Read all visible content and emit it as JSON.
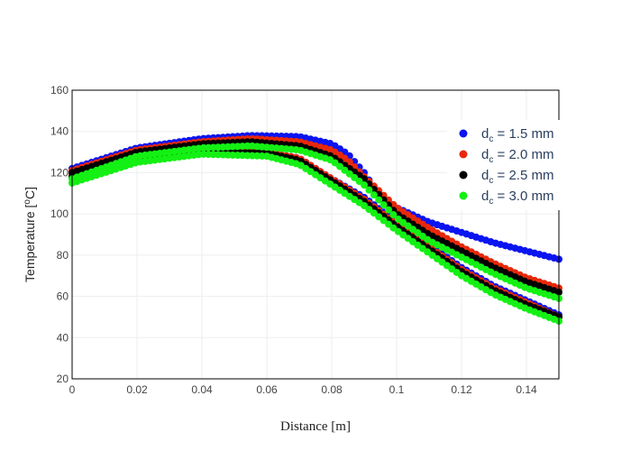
{
  "chart_data": {
    "type": "scatter",
    "title": "",
    "xlabel": "Distance [m]",
    "ylabel_text": "Temperature [",
    "ylabel_unit": "o",
    "ylabel_end": "C]",
    "xlim": [
      0,
      0.15
    ],
    "ylim": [
      20,
      160
    ],
    "x_ticks": [
      0,
      0.02,
      0.04,
      0.06,
      0.08,
      0.1,
      0.12,
      0.14
    ],
    "x_tick_labels": [
      "0",
      "0.02",
      "0.04",
      "0.06",
      "0.08",
      "0.1",
      "0.12",
      "0.14"
    ],
    "y_ticks": [
      20,
      40,
      60,
      80,
      100,
      120,
      140,
      160
    ],
    "y_tick_labels": [
      "20",
      "40",
      "60",
      "80",
      "100",
      "120",
      "140",
      "160"
    ],
    "grid": true,
    "legend_position": "right",
    "series": [
      {
        "name_main": "d",
        "name_sub": "c",
        "name_rest": " = 1.5 mm",
        "color": "#0a14f0",
        "curves": [
          [
            [
              0,
              122
            ],
            [
              0.02,
              132
            ],
            [
              0.04,
              136.5
            ],
            [
              0.055,
              138
            ],
            [
              0.07,
              137.5
            ],
            [
              0.08,
              134
            ],
            [
              0.085,
              129
            ],
            [
              0.09,
              120
            ],
            [
              0.095,
              108
            ],
            [
              0.1,
              103
            ],
            [
              0.11,
              96
            ],
            [
              0.12,
              91
            ],
            [
              0.13,
              86
            ],
            [
              0.14,
              82
            ],
            [
              0.15,
              78
            ]
          ],
          [
            [
              0,
              118
            ],
            [
              0.02,
              127
            ],
            [
              0.04,
              131
            ],
            [
              0.06,
              130
            ],
            [
              0.07,
              127
            ],
            [
              0.08,
              117
            ],
            [
              0.09,
              108
            ],
            [
              0.1,
              96
            ],
            [
              0.11,
              85
            ],
            [
              0.12,
              74
            ],
            [
              0.13,
              65
            ],
            [
              0.14,
              58
            ],
            [
              0.15,
              51
            ]
          ]
        ]
      },
      {
        "name_main": "d",
        "name_sub": "c",
        "name_rest": " = 2.0 mm",
        "color": "#e8280a",
        "curves": [
          [
            [
              0,
              121
            ],
            [
              0.02,
              131
            ],
            [
              0.04,
              135
            ],
            [
              0.055,
              136.5
            ],
            [
              0.07,
              135
            ],
            [
              0.08,
              131
            ],
            [
              0.085,
              126
            ],
            [
              0.09,
              118
            ],
            [
              0.1,
              103
            ],
            [
              0.11,
              93
            ],
            [
              0.12,
              84
            ],
            [
              0.13,
              76
            ],
            [
              0.14,
              69
            ],
            [
              0.15,
              64
            ]
          ],
          [
            [
              0,
              119
            ],
            [
              0.02,
              128
            ],
            [
              0.04,
              131
            ],
            [
              0.06,
              130
            ],
            [
              0.07,
              127
            ],
            [
              0.08,
              117
            ],
            [
              0.09,
              107
            ],
            [
              0.1,
              95
            ],
            [
              0.11,
              84
            ],
            [
              0.12,
              73
            ],
            [
              0.13,
              64
            ],
            [
              0.14,
              57
            ],
            [
              0.15,
              50
            ]
          ]
        ]
      },
      {
        "name_main": "d",
        "name_sub": "c",
        "name_rest": " = 2.5 mm",
        "color": "#000000",
        "curves": [
          [
            [
              0,
              120
            ],
            [
              0.02,
              130
            ],
            [
              0.04,
              134
            ],
            [
              0.055,
              135
            ],
            [
              0.07,
              133
            ],
            [
              0.08,
              128
            ],
            [
              0.09,
              117
            ],
            [
              0.1,
              100
            ],
            [
              0.11,
              90
            ],
            [
              0.12,
              82
            ],
            [
              0.13,
              74
            ],
            [
              0.14,
              67
            ],
            [
              0.15,
              62
            ]
          ],
          [
            [
              0,
              118
            ],
            [
              0.02,
              127
            ],
            [
              0.04,
              130.5
            ],
            [
              0.06,
              129.5
            ],
            [
              0.07,
              126
            ],
            [
              0.08,
              116
            ],
            [
              0.09,
              106
            ],
            [
              0.1,
              94
            ],
            [
              0.11,
              83
            ],
            [
              0.12,
              72
            ],
            [
              0.13,
              63
            ],
            [
              0.14,
              56
            ],
            [
              0.15,
              50
            ]
          ]
        ]
      },
      {
        "name_main": "d",
        "name_sub": "c",
        "name_rest": " = 3.0 mm",
        "color": "#14f014",
        "curves": [
          [
            [
              0,
              117
            ],
            [
              0.02,
              128
            ],
            [
              0.04,
              132
            ],
            [
              0.055,
              133
            ],
            [
              0.07,
              131
            ],
            [
              0.08,
              126
            ],
            [
              0.09,
              114
            ],
            [
              0.1,
              98
            ],
            [
              0.11,
              87
            ],
            [
              0.12,
              79
            ],
            [
              0.13,
              71
            ],
            [
              0.14,
              64
            ],
            [
              0.15,
              59
            ]
          ],
          [
            [
              0,
              115
            ],
            [
              0.02,
              125
            ],
            [
              0.04,
              129
            ],
            [
              0.06,
              128
            ],
            [
              0.07,
              124
            ],
            [
              0.08,
              114
            ],
            [
              0.09,
              104
            ],
            [
              0.1,
              92
            ],
            [
              0.11,
              81
            ],
            [
              0.12,
              70
            ],
            [
              0.13,
              61
            ],
            [
              0.14,
              54
            ],
            [
              0.15,
              48
            ]
          ]
        ]
      }
    ]
  }
}
